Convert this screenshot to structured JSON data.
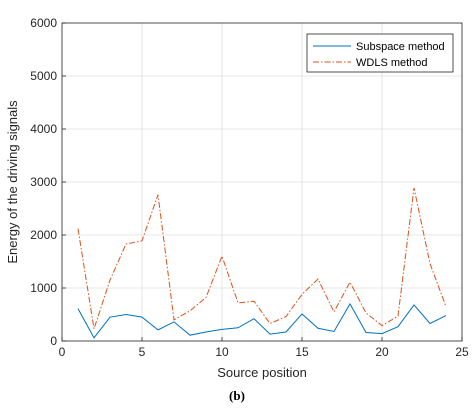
{
  "caption": "(b)",
  "chart_data": {
    "type": "line",
    "xlabel": "Source position",
    "ylabel": "Energy of the driving signals",
    "xlim": [
      0,
      25
    ],
    "ylim": [
      0,
      6000
    ],
    "xticks": [
      0,
      5,
      10,
      15,
      20,
      25
    ],
    "yticks": [
      0,
      1000,
      2000,
      3000,
      4000,
      5000,
      6000
    ],
    "grid": true,
    "legend_position": "top-right",
    "x": [
      1,
      2,
      3,
      4,
      5,
      6,
      7,
      8,
      9,
      10,
      11,
      12,
      13,
      14,
      15,
      16,
      17,
      18,
      19,
      20,
      21,
      22,
      23,
      24
    ],
    "series": [
      {
        "name": "Subspace method",
        "color": "#0072BD",
        "line_style": "solid",
        "values": [
          610,
          60,
          450,
          500,
          450,
          210,
          360,
          110,
          170,
          220,
          250,
          420,
          130,
          170,
          510,
          240,
          180,
          700,
          160,
          140,
          270,
          680,
          330,
          480
        ]
      },
      {
        "name": "WDLS method",
        "color": "#D95319",
        "line_style": "dash-dot",
        "values": [
          2120,
          230,
          1150,
          1830,
          1890,
          2760,
          400,
          570,
          820,
          1600,
          720,
          750,
          330,
          460,
          880,
          1170,
          550,
          1110,
          530,
          290,
          470,
          2890,
          1460,
          650
        ]
      }
    ]
  }
}
